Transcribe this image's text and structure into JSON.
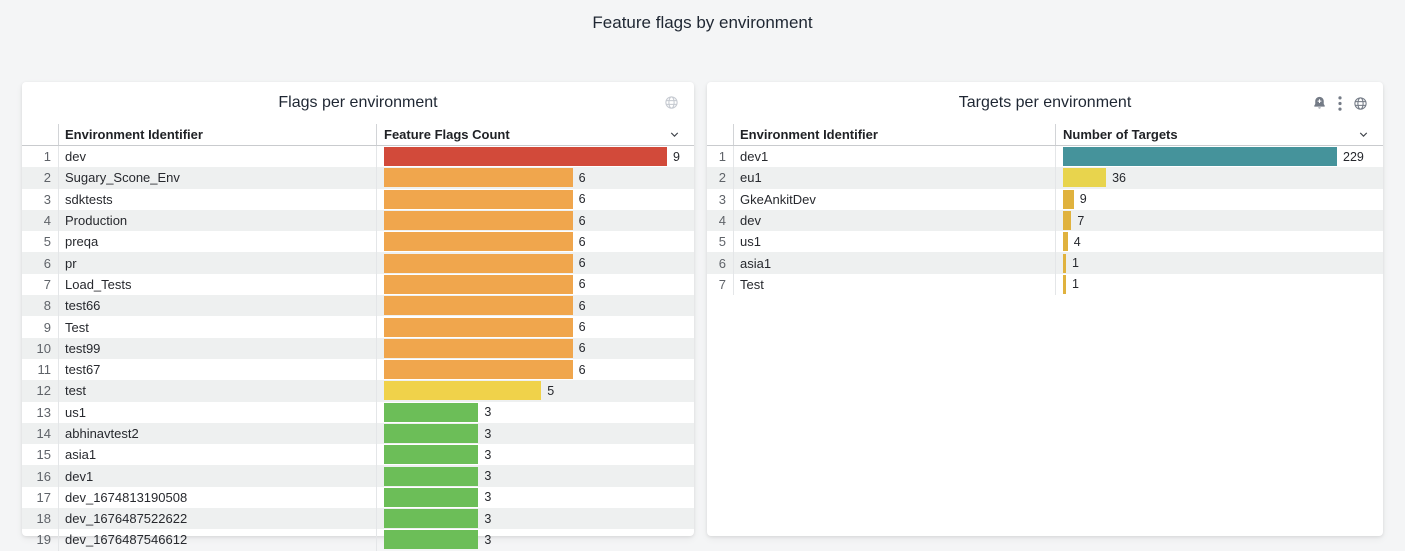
{
  "page": {
    "title": "Feature flags by environment"
  },
  "colors": {
    "page_bg": "#f4f5f6",
    "panel_bg": "#ffffff",
    "row_stripe": "#eef0f0",
    "red": "#d24a3a",
    "orange": "#f0a64d",
    "yellow": "#f0d24a",
    "green": "#6cbe58",
    "teal": "#45939b",
    "bright_yellow": "#e8d44d",
    "gold": "#e0b23e",
    "icon_gray": "#747b86",
    "icon_light_gray": "#c6cad1"
  },
  "panels": [
    {
      "title": "Flags per environment",
      "icons": [
        "globe-icon"
      ],
      "table_header_icon": "chevron-down-icon",
      "columns": [
        "Environment Identifier",
        "Feature Flags Count"
      ],
      "max": 9,
      "rows": [
        {
          "n": 1,
          "id": "dev",
          "value": 9,
          "color": "#d24a3a"
        },
        {
          "n": 2,
          "id": "Sugary_Scone_Env",
          "value": 6,
          "color": "#f0a64d"
        },
        {
          "n": 3,
          "id": "sdktests",
          "value": 6,
          "color": "#f0a64d"
        },
        {
          "n": 4,
          "id": "Production",
          "value": 6,
          "color": "#f0a64d"
        },
        {
          "n": 5,
          "id": "preqa",
          "value": 6,
          "color": "#f0a64d"
        },
        {
          "n": 6,
          "id": "pr",
          "value": 6,
          "color": "#f0a64d"
        },
        {
          "n": 7,
          "id": "Load_Tests",
          "value": 6,
          "color": "#f0a64d"
        },
        {
          "n": 8,
          "id": "test66",
          "value": 6,
          "color": "#f0a64d"
        },
        {
          "n": 9,
          "id": "Test",
          "value": 6,
          "color": "#f0a64d"
        },
        {
          "n": 10,
          "id": "test99",
          "value": 6,
          "color": "#f0a64d"
        },
        {
          "n": 11,
          "id": "test67",
          "value": 6,
          "color": "#f0a64d"
        },
        {
          "n": 12,
          "id": "test",
          "value": 5,
          "color": "#f0d24a"
        },
        {
          "n": 13,
          "id": "us1",
          "value": 3,
          "color": "#6cbe58"
        },
        {
          "n": 14,
          "id": "abhinavtest2",
          "value": 3,
          "color": "#6cbe58"
        },
        {
          "n": 15,
          "id": "asia1",
          "value": 3,
          "color": "#6cbe58"
        },
        {
          "n": 16,
          "id": "dev1",
          "value": 3,
          "color": "#6cbe58"
        },
        {
          "n": 17,
          "id": "dev_1674813190508",
          "value": 3,
          "color": "#6cbe58"
        },
        {
          "n": 18,
          "id": "dev_1676487522622",
          "value": 3,
          "color": "#6cbe58"
        },
        {
          "n": 19,
          "id": "dev_1676487546612",
          "value": 3,
          "color": "#6cbe58"
        }
      ]
    },
    {
      "title": "Targets per environment",
      "icons": [
        "bell-plus-icon",
        "kebab-menu-icon",
        "globe-icon"
      ],
      "table_header_icon": "chevron-down-icon",
      "columns": [
        "Environment Identifier",
        "Number of Targets"
      ],
      "max": 229,
      "rows": [
        {
          "n": 1,
          "id": "dev1",
          "value": 229,
          "color": "#45939b"
        },
        {
          "n": 2,
          "id": "eu1",
          "value": 36,
          "color": "#e8d44d"
        },
        {
          "n": 3,
          "id": "GkeAnkitDev",
          "value": 9,
          "color": "#e0b23e"
        },
        {
          "n": 4,
          "id": "dev",
          "value": 7,
          "color": "#e0b23e"
        },
        {
          "n": 5,
          "id": "us1",
          "value": 4,
          "color": "#e0b23e"
        },
        {
          "n": 6,
          "id": "asia1",
          "value": 1,
          "color": "#e0b23e"
        },
        {
          "n": 7,
          "id": "Test",
          "value": 1,
          "color": "#e0b23e"
        }
      ]
    }
  ],
  "chart_data": [
    {
      "type": "bar",
      "orientation": "horizontal",
      "title": "Flags per environment",
      "xlabel": "Feature Flags Count",
      "ylabel": "Environment Identifier",
      "xlim": [
        0,
        9
      ],
      "categories": [
        "dev",
        "Sugary_Scone_Env",
        "sdktests",
        "Production",
        "preqa",
        "pr",
        "Load_Tests",
        "test66",
        "Test",
        "test99",
        "test67",
        "test",
        "us1",
        "abhinavtest2",
        "asia1",
        "dev1",
        "dev_1674813190508",
        "dev_1676487522622",
        "dev_1676487546612"
      ],
      "values": [
        9,
        6,
        6,
        6,
        6,
        6,
        6,
        6,
        6,
        6,
        6,
        5,
        3,
        3,
        3,
        3,
        3,
        3,
        3
      ]
    },
    {
      "type": "bar",
      "orientation": "horizontal",
      "title": "Targets per environment",
      "xlabel": "Number of Targets",
      "ylabel": "Environment Identifier",
      "xlim": [
        0,
        229
      ],
      "categories": [
        "dev1",
        "eu1",
        "GkeAnkitDev",
        "dev",
        "us1",
        "asia1",
        "Test"
      ],
      "values": [
        229,
        36,
        9,
        7,
        4,
        1,
        1
      ]
    }
  ]
}
